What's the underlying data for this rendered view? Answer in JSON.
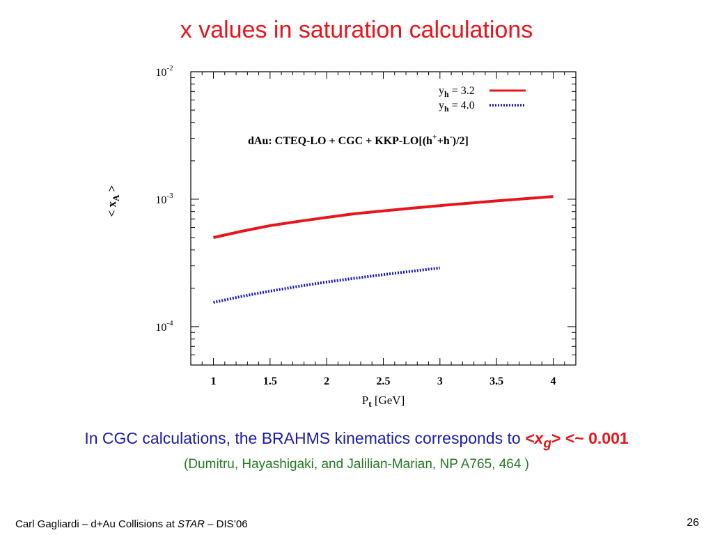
{
  "slide": {
    "title": "x values in saturation calculations",
    "caption": {
      "text": "In CGC calculations, the BRAHMS kinematics corresponds to ",
      "x_open": "<x",
      "x_sub": "g",
      "x_close": "> <~ ",
      "value": "0.001"
    },
    "citation": "(Dumitru, Hayashigaki, and Jalilian-Marian, NP A765, 464 )",
    "footer": {
      "prefix": "Carl Gagliardi – d+Au Collisions at ",
      "italic": "STAR",
      "suffix": " – DIS’06"
    },
    "page_number": "26"
  },
  "colors": {
    "title": "#e8141b",
    "caption": "#1a1aa8",
    "citation": "#1f7a1f",
    "series_red": "#e8141b",
    "series_blue": "#1414c8"
  },
  "chart_data": {
    "type": "line",
    "xlim": [
      0.8,
      4.2
    ],
    "ylim": [
      5e-05,
      0.01
    ],
    "yscale": "log",
    "grid": false,
    "legend_position": "top-right",
    "x_ticks": [
      {
        "v": 1,
        "label": "1"
      },
      {
        "v": 1.5,
        "label": "1.5"
      },
      {
        "v": 2,
        "label": "2"
      },
      {
        "v": 2.5,
        "label": "2.5"
      },
      {
        "v": 3,
        "label": "3"
      },
      {
        "v": 3.5,
        "label": "3.5"
      },
      {
        "v": 4,
        "label": "4"
      }
    ],
    "y_ticks": [
      {
        "v": 0.01,
        "base": "10",
        "exp": "-2"
      },
      {
        "v": 0.001,
        "base": "10",
        "exp": "-3"
      },
      {
        "v": 0.0001,
        "base": "10",
        "exp": "-4"
      }
    ],
    "xlabel": {
      "main": "P",
      "sub": "t",
      "rest": " [GeV]"
    },
    "ylabel": {
      "open": "< x",
      "sub": "A",
      "close": " >"
    },
    "annotation": {
      "text1": "dAu: CTEQ-LO + CGC + KKP-LO[(h",
      "sup1": "+",
      "text2": "+h",
      "sup2": "-",
      "text3": ")/2]"
    },
    "series": [
      {
        "name": "y_h = 3.2",
        "legend": {
          "main": "y",
          "sub": "h",
          "rest": " = 3.2"
        },
        "style": "solid",
        "color": "#e8141b",
        "x": [
          1.0,
          1.25,
          1.5,
          1.75,
          2.0,
          2.25,
          2.5,
          2.75,
          3.0,
          3.25,
          3.5,
          3.75,
          4.0
        ],
        "y": [
          0.0005,
          0.00056,
          0.00062,
          0.00067,
          0.00072,
          0.00077,
          0.00081,
          0.00085,
          0.00089,
          0.00093,
          0.00097,
          0.00101,
          0.00105
        ]
      },
      {
        "name": "y_h = 4.0",
        "legend": {
          "main": "y",
          "sub": "h",
          "rest": " = 4.0"
        },
        "style": "dotted",
        "color": "#1414c8",
        "x": [
          1.0,
          1.25,
          1.5,
          1.75,
          2.0,
          2.25,
          2.5,
          2.75,
          3.0
        ],
        "y": [
          0.000155,
          0.000173,
          0.00019,
          0.000207,
          0.000224,
          0.00024,
          0.000256,
          0.000272,
          0.000289
        ]
      }
    ]
  }
}
